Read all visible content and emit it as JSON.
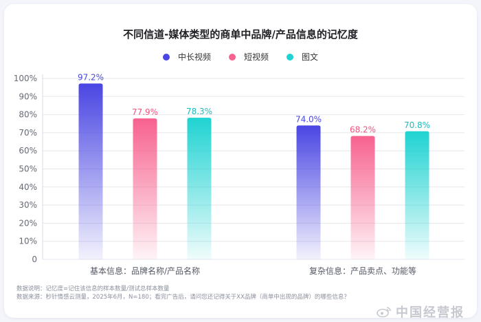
{
  "chart_data": {
    "type": "bar",
    "title": "不同信道-媒体类型的商单中品牌/产品信息的记忆度",
    "categories": [
      "基本信息：品牌名称/产品名称",
      "复杂信息：产品卖点、功能等"
    ],
    "series": [
      {
        "name": "中长视频",
        "values": [
          97.2,
          74.0
        ],
        "labels": [
          "97.2%",
          "74.0%"
        ],
        "color": "#4a46e3",
        "label_color": "#4a46e3"
      },
      {
        "name": "短视频",
        "values": [
          77.9,
          68.2
        ],
        "labels": [
          "77.9%",
          "68.2%"
        ],
        "color": "#f7628f",
        "label_color": "#f2557f"
      },
      {
        "name": "图文",
        "values": [
          78.3,
          70.8
        ],
        "labels": [
          "78.3%",
          "70.8%"
        ],
        "color": "#1fd3d2",
        "label_color": "#1bbcbb"
      }
    ],
    "ylim": [
      0,
      100
    ],
    "yticks": [
      "0",
      "10%",
      "20%",
      "30%",
      "40%",
      "50%",
      "60%",
      "70%",
      "80%",
      "90%",
      "100%"
    ],
    "grid": true,
    "legend_position": "top-center"
  },
  "footer": {
    "line1": "数据说明：记忆度=记住该信息的样本数量/测试总样本数量",
    "line2": "数据来源：秒针情感云测量，2025年6月，N=180；看完广告后，请问您还记得关于XX品牌（商单中出现的品牌）的哪些信息？"
  },
  "watermark": {
    "text": "中国经营报",
    "icon": "weibo-icon"
  }
}
